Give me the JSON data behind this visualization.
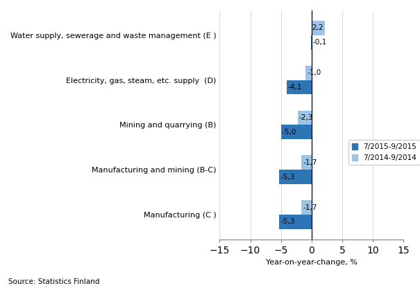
{
  "categories": [
    "Water supply, sewerage and waste management (E )",
    "Electricity, gas, steam, etc. supply  (D)",
    "Mining and quarrying (B)",
    "Manufacturing and mining (B-C)",
    "Manufacturing (C )"
  ],
  "series1_label": "7/2015-9/2015",
  "series2_label": "7/2014-9/2014",
  "series1_values": [
    -0.1,
    -4.1,
    -5.0,
    -5.3,
    -5.3
  ],
  "series2_values": [
    2.2,
    -1.0,
    -2.3,
    -1.7,
    -1.7
  ],
  "series1_color": "#2E75B6",
  "series2_color": "#9DC3E6",
  "xlim": [
    -15,
    15
  ],
  "xlabel": "Year-on-year-change, %",
  "xticks": [
    -15,
    -10,
    -5,
    0,
    5,
    10,
    15
  ],
  "source_text": "Source: Statistics Finland",
  "bar_height": 0.32,
  "value_fontsize": 7.5,
  "label_fontsize": 8,
  "legend_fontsize": 7.5
}
